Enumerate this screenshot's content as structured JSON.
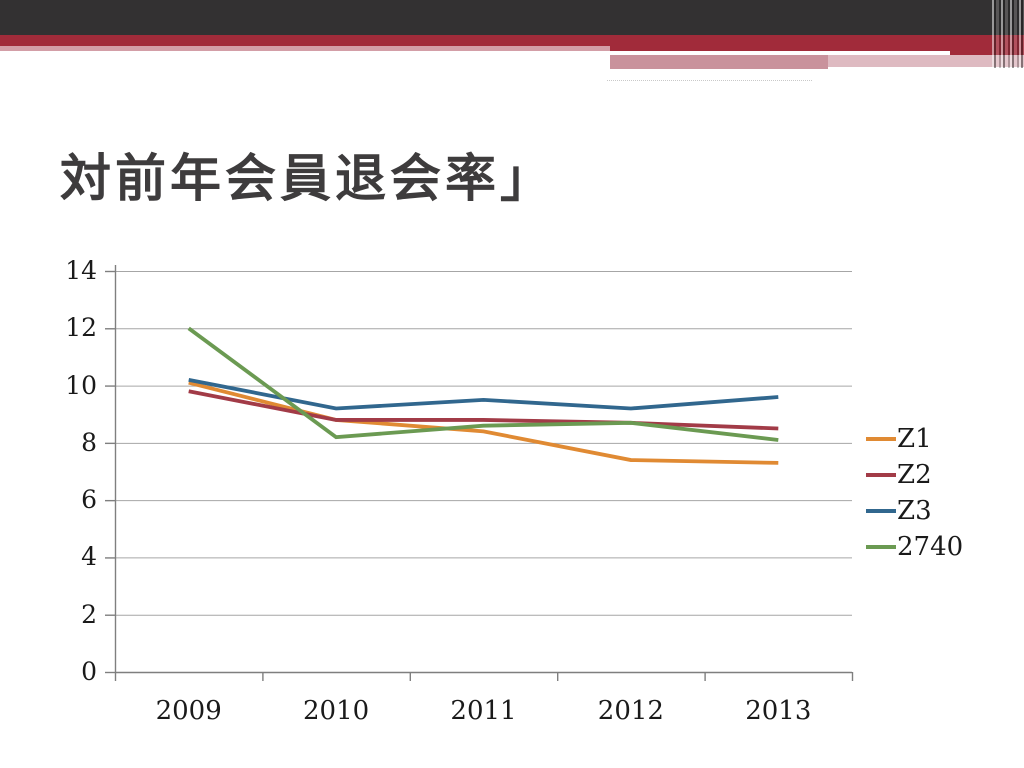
{
  "slide": {
    "title": "対前年会員退会率」"
  },
  "chart_data": {
    "type": "line",
    "title": "",
    "xlabel": "",
    "ylabel": "",
    "categories": [
      "2009",
      "2010",
      "2011",
      "2012",
      "2013"
    ],
    "series": [
      {
        "name": "Z1",
        "color": "#E08A33",
        "values": [
          10.1,
          8.8,
          8.4,
          7.4,
          7.3
        ]
      },
      {
        "name": "Z2",
        "color": "#A23B47",
        "values": [
          9.8,
          8.8,
          8.8,
          8.7,
          8.5
        ]
      },
      {
        "name": "Z3",
        "color": "#31678E",
        "values": [
          10.2,
          9.2,
          9.5,
          9.2,
          9.6
        ]
      },
      {
        "name": "2740",
        "color": "#6B9A52",
        "values": [
          12.0,
          8.2,
          8.6,
          8.7,
          8.1
        ]
      }
    ],
    "ylim": [
      0,
      14
    ],
    "yticks": [
      0,
      2,
      4,
      6,
      8,
      10,
      12,
      14
    ],
    "grid": true,
    "legend_position": "right"
  },
  "theme": {
    "banner_dark": "#333132",
    "banner_red": "#A12B3A",
    "banner_pink": "#D39EA7",
    "gridline_color": "#A6A6A6",
    "axis_color": "#7F7F7F",
    "chart_text_color": "#1a1a1a",
    "title_color": "#3E3C3D",
    "background": "#FFFFFF"
  }
}
